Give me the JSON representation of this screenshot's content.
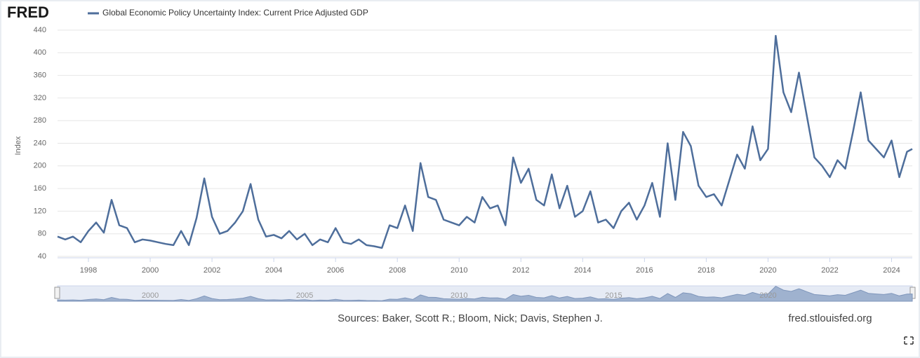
{
  "brand": "FRED",
  "chart_data": {
    "type": "line",
    "y_label": "Index",
    "x": [
      1997,
      1997.25,
      1997.5,
      1997.75,
      1998,
      1998.25,
      1998.5,
      1998.75,
      1999,
      1999.25,
      1999.5,
      1999.75,
      2000,
      2000.25,
      2000.5,
      2000.75,
      2001,
      2001.25,
      2001.5,
      2001.75,
      2002,
      2002.25,
      2002.5,
      2002.75,
      2003,
      2003.25,
      2003.5,
      2003.75,
      2004,
      2004.25,
      2004.5,
      2004.75,
      2005,
      2005.25,
      2005.5,
      2005.75,
      2006,
      2006.25,
      2006.5,
      2006.75,
      2007,
      2007.25,
      2007.5,
      2007.75,
      2008,
      2008.25,
      2008.5,
      2008.75,
      2009,
      2009.25,
      2009.5,
      2009.75,
      2010,
      2010.25,
      2010.5,
      2010.75,
      2011,
      2011.25,
      2011.5,
      2011.75,
      2012,
      2012.25,
      2012.5,
      2012.75,
      2013,
      2013.25,
      2013.5,
      2013.75,
      2014,
      2014.25,
      2014.5,
      2014.75,
      2015,
      2015.25,
      2015.5,
      2015.75,
      2016,
      2016.25,
      2016.5,
      2016.75,
      2017,
      2017.25,
      2017.5,
      2017.75,
      2018,
      2018.25,
      2018.5,
      2018.75,
      2019,
      2019.25,
      2019.5,
      2019.75,
      2020,
      2020.25,
      2020.5,
      2020.75,
      2021,
      2021.25,
      2021.5,
      2021.75,
      2022,
      2022.25,
      2022.5,
      2022.75,
      2023,
      2023.25,
      2023.5,
      2023.75,
      2024,
      2024.25,
      2024.5,
      2024.67
    ],
    "series": [
      {
        "name": "Global Economic Policy Uncertainty Index: Current Price Adjusted GDP",
        "color": "#4e6e9b",
        "values": [
          75,
          70,
          75,
          65,
          85,
          100,
          82,
          140,
          95,
          90,
          65,
          70,
          68,
          65,
          62,
          60,
          85,
          60,
          108,
          178,
          110,
          80,
          85,
          100,
          120,
          168,
          105,
          75,
          78,
          72,
          85,
          70,
          80,
          60,
          70,
          65,
          90,
          65,
          62,
          70,
          60,
          58,
          55,
          95,
          90,
          130,
          85,
          205,
          145,
          140,
          105,
          100,
          95,
          110,
          100,
          145,
          125,
          130,
          95,
          215,
          170,
          195,
          140,
          130,
          185,
          125,
          165,
          110,
          120,
          155,
          100,
          105,
          90,
          120,
          135,
          105,
          130,
          170,
          110,
          240,
          140,
          260,
          235,
          165,
          145,
          150,
          130,
          175,
          220,
          195,
          270,
          210,
          230,
          430,
          330,
          295,
          365,
          290,
          215,
          200,
          180,
          210,
          195,
          260,
          330,
          245,
          230,
          215,
          245,
          180,
          225,
          230
        ]
      }
    ],
    "xlim": [
      1997,
      2024.67
    ],
    "xticks": [
      1998,
      2000,
      2002,
      2004,
      2006,
      2008,
      2010,
      2012,
      2014,
      2016,
      2018,
      2020,
      2022,
      2024
    ],
    "ylim": [
      40,
      440
    ],
    "yticks": [
      40,
      80,
      120,
      160,
      200,
      240,
      280,
      320,
      360,
      400,
      440
    ],
    "grid": true,
    "navigator_ticks": [
      2000,
      2005,
      2010,
      2015,
      2020
    ]
  },
  "footer": {
    "sources": "Sources: Baker, Scott R.; Bloom, Nick; Davis, Stephen J.",
    "site": "fred.stlouisfed.org"
  }
}
